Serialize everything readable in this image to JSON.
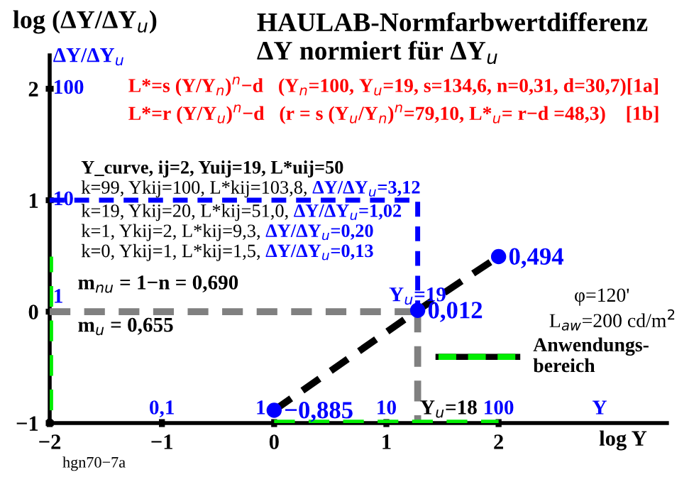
{
  "chart_data": {
    "type": "line",
    "title": "HAULAB-Normfarbwertdifferenz",
    "subtitle": "ΔY normiert für ΔY$_{u}$",
    "ylabel": "log (ΔY/ΔY$_{u}$)",
    "xlabel": "log Y",
    "xlim": [
      -2,
      3.5
    ],
    "ylim": [
      -1,
      2.3
    ],
    "xticks": [
      -2,
      -1,
      0,
      1,
      2
    ],
    "yticks": [
      -1,
      0,
      1,
      2
    ],
    "grid": false,
    "legend": "right",
    "series": [
      {
        "type": "line",
        "color": "#000000",
        "line_style": "dashed",
        "x": [
          0,
          1.279,
          2
        ],
        "values": [
          -0.885,
          0.012,
          0.494
        ]
      },
      {
        "type": "scatter",
        "color": "#0000ff",
        "marker": "circle",
        "x": [
          0,
          1.279,
          2
        ],
        "values": [
          -0.885,
          0.012,
          0.494
        ],
        "value_labels": [
          "−0,885",
          "0,012",
          "0,494"
        ]
      },
      {
        "type": "line",
        "color": "#808080",
        "line_style": "dashed",
        "x": [
          -2,
          1.279
        ],
        "values": [
          0,
          0
        ]
      },
      {
        "type": "line",
        "color": "#808080",
        "line_style": "dashed",
        "x": [
          1.279,
          1.279
        ],
        "values": [
          0,
          -1
        ]
      },
      {
        "type": "line",
        "color": "#0000ff",
        "line_style": "dashed",
        "x": [
          -2,
          1.279,
          1.279
        ],
        "values": [
          1,
          1,
          0
        ]
      },
      {
        "type": "line",
        "color": "#00ee00",
        "line_style": "dashed",
        "name": "Anwendungs-\nbereich",
        "x": [
          0,
          2
        ],
        "values": [
          -1,
          -1
        ]
      },
      {
        "type": "line",
        "color": "#00ee00",
        "line_style": "dashed",
        "x": [
          -2,
          -2
        ],
        "values": [
          -0.885,
          0.494
        ]
      }
    ],
    "annotations": [
      "L*=s (Y/Y$_{n}$)$^{n}$−d   (Y$_{n}$=100, Y$_{u}$=19, s=134,6, n=0,31, d=30,7)[1a]",
      "L*=r (Y/Y$_{u}$)$^{n}$−d   (r = s (Y$_{u}$/Y$_{n}$)$^{n}$=79,10, L*$_{u}$= r−d =48,3)    [1b]",
      "Y_curve, ij=2, Yuij=19, L*uij=50",
      "k=99, Ykij=100, L*kij=103,8, ",
      "ΔY/ΔY$_{u}$=3,12",
      "k=19, Ykij=20, L*kij=51,0, ",
      "ΔY/ΔY$_{u}$=1,02",
      "k=1, Ykij=2, L*kij=9,3, ",
      "ΔY/ΔY$_{u}$=0,20",
      "k=0, Ykij=1, L*kij=1,5, ",
      "ΔY/ΔY$_{u}$=0,13",
      "m$_{nu}$ = 1−n = 0,690",
      "m$_{u}$ = 0,655",
      "φ=120'",
      "L$_{aw}$=200 cd/m$^{2}$",
      "hgn70−7a",
      "ΔY/ΔY$_{u}$",
      "100",
      "10",
      "1",
      "0,1",
      "1",
      "10",
      "100",
      "Y",
      "Y$_{u}$=18",
      {
        "text": "Y$_{u}$=19",
        "x": 1.279,
        "y": 0
      }
    ]
  }
}
